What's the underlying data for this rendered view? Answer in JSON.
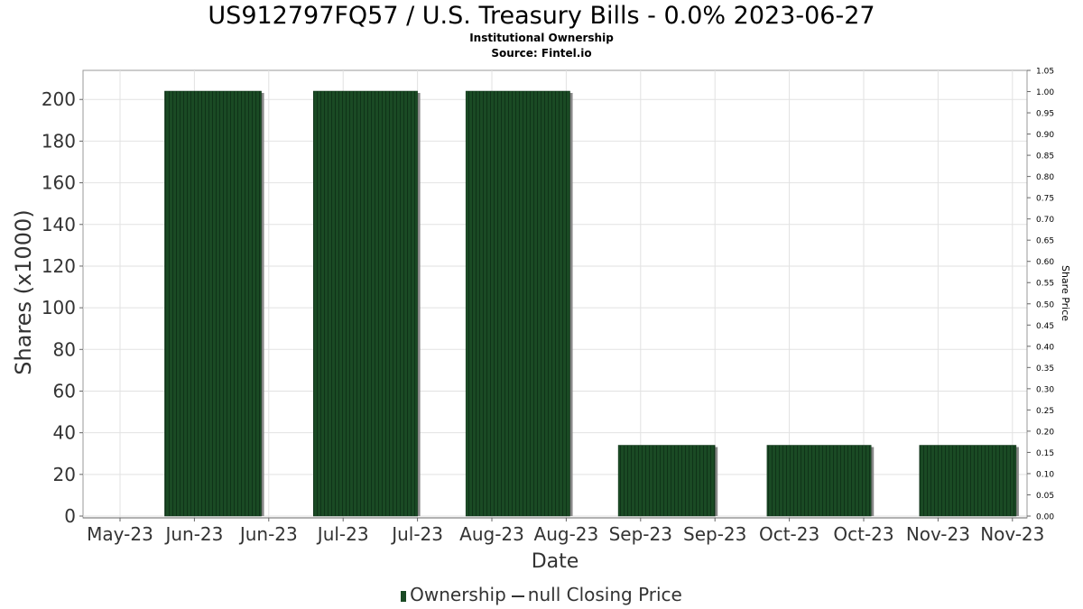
{
  "chart_data": {
    "type": "bar",
    "title": "US912797FQ57 / U.S. Treasury Bills - 0.0% 2023-06-27",
    "subtitles": [
      "Institutional Ownership",
      "Source: Fintel.io"
    ],
    "xlabel": "Date",
    "ylabel": "Shares (x1000)",
    "y2label": "Share Price",
    "x_tick_labels": [
      "May-23",
      "Jun-23",
      "Jun-23",
      "Jul-23",
      "Jul-23",
      "Aug-23",
      "Aug-23",
      "Sep-23",
      "Sep-23",
      "Oct-23",
      "Oct-23",
      "Nov-23",
      "Nov-23"
    ],
    "y_ticks": [
      0,
      20,
      40,
      60,
      80,
      100,
      120,
      140,
      160,
      180,
      200
    ],
    "ylim": [
      0,
      210
    ],
    "y2_ticks": [
      "0.00",
      "0.05",
      "0.10",
      "0.15",
      "0.20",
      "0.25",
      "0.30",
      "0.35",
      "0.40",
      "0.45",
      "0.50",
      "0.55",
      "0.60",
      "0.65",
      "0.70",
      "0.75",
      "0.80",
      "0.85",
      "0.90",
      "0.95",
      "1.00",
      "1.05"
    ],
    "y2lim": [
      0,
      1.05
    ],
    "series": [
      {
        "name": "Ownership",
        "color": "#1a4a24",
        "bars": [
          {
            "start": 0.6,
            "end": 1.9,
            "value": 204
          },
          {
            "start": 2.6,
            "end": 4.0,
            "value": 204
          },
          {
            "start": 4.65,
            "end": 6.05,
            "value": 204
          },
          {
            "start": 6.7,
            "end": 8.0,
            "value": 34
          },
          {
            "start": 8.7,
            "end": 10.1,
            "value": 34
          },
          {
            "start": 10.75,
            "end": 12.05,
            "value": 34
          }
        ]
      },
      {
        "name": "null Closing Price",
        "type": "line",
        "values": []
      }
    ],
    "grid": true,
    "legend_position": "bottom-center"
  },
  "legend": {
    "ownership_label": "Ownership",
    "price_label": "null Closing Price"
  }
}
